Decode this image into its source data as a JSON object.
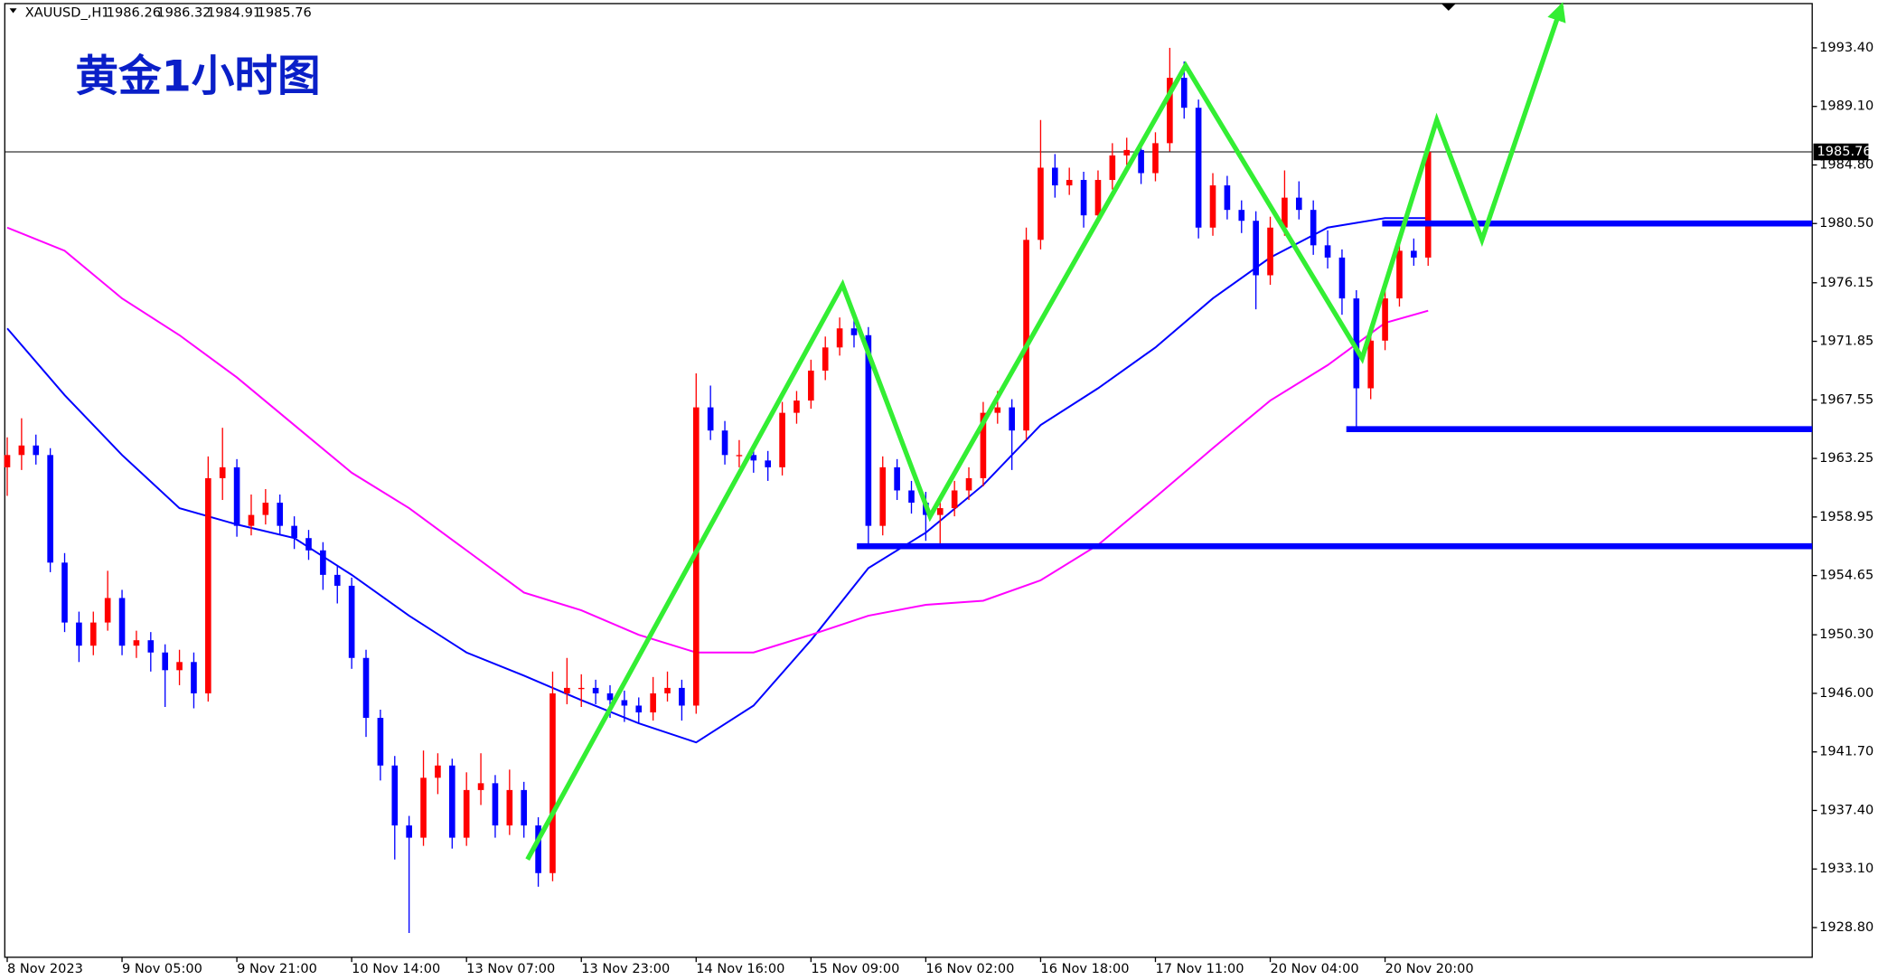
{
  "chart_data": {
    "type": "candlestick",
    "title": "黄金1小时图",
    "header": {
      "symbol": "XAUUSD_,H1",
      "values": [
        1986.26,
        1986.32,
        1984.91,
        1985.76
      ]
    },
    "current_price": 1985.76,
    "up_color": "#ff0000",
    "down_color": "#0000ff",
    "xlim": [
      -0.17,
      125.76
    ],
    "ylim": [
      1926.62,
      1996.65
    ],
    "yticks": [
      {
        "value": 1993.4,
        "label": "1993.40"
      },
      {
        "value": 1989.1,
        "label": "1989.10"
      },
      {
        "value": 1984.8,
        "label": "1984.80"
      },
      {
        "value": 1980.5,
        "label": "1980.50"
      },
      1976.15,
      1971.85,
      1967.55,
      1963.25,
      1958.95,
      1954.65,
      {
        "value": 1950.3,
        "label": "1950.30"
      },
      {
        "value": 1946.0,
        "label": "1946.00"
      },
      {
        "value": 1941.7,
        "label": "1941.70"
      },
      {
        "value": 1937.4,
        "label": "1937.40"
      },
      {
        "value": 1933.1,
        "label": "1933.10"
      },
      {
        "value": 1928.8,
        "label": "1928.80"
      }
    ],
    "categories": [
      "8 Nov 2023",
      null,
      null,
      null,
      null,
      null,
      null,
      null,
      "9 Nov 05:00",
      null,
      null,
      null,
      null,
      null,
      null,
      null,
      "9 Nov 21:00",
      null,
      null,
      null,
      null,
      null,
      null,
      null,
      "10 Nov 14:00",
      null,
      null,
      null,
      null,
      null,
      null,
      null,
      "13 Nov 07:00",
      null,
      null,
      null,
      null,
      null,
      null,
      null,
      "13 Nov 23:00",
      null,
      null,
      null,
      null,
      null,
      null,
      null,
      "14 Nov 16:00",
      null,
      null,
      null,
      null,
      null,
      null,
      null,
      "15 Nov 09:00",
      null,
      null,
      null,
      null,
      null,
      null,
      null,
      "16 Nov 02:00",
      null,
      null,
      null,
      null,
      null,
      null,
      null,
      "16 Nov 18:00",
      null,
      null,
      null,
      null,
      null,
      null,
      null,
      "17 Nov 11:00",
      null,
      null,
      null,
      null,
      null,
      null,
      null,
      "20 Nov 04:00",
      null,
      null,
      null,
      null,
      null,
      null,
      null,
      "20 Nov 20:00",
      null,
      null,
      null
    ],
    "candles": [
      [
        1962.6,
        1964.8,
        1960.5,
        1963.5
      ],
      [
        1963.5,
        1966.2,
        1962.4,
        1964.2
      ],
      [
        1964.2,
        1965.0,
        1962.8,
        1963.5
      ],
      [
        1963.5,
        1964.0,
        1954.9,
        1955.6
      ],
      [
        1955.6,
        1956.3,
        1950.5,
        1951.2
      ],
      [
        1951.2,
        1952.0,
        1948.3,
        1949.5
      ],
      [
        1949.5,
        1952.0,
        1948.8,
        1951.2
      ],
      [
        1951.2,
        1955.0,
        1950.6,
        1953.0
      ],
      [
        1953.0,
        1953.6,
        1948.8,
        1949.5
      ],
      [
        1949.5,
        1950.6,
        1948.6,
        1949.9
      ],
      [
        1949.9,
        1950.5,
        1947.6,
        1949.0
      ],
      [
        1949.0,
        1949.6,
        1945.0,
        1947.7
      ],
      [
        1947.7,
        1949.2,
        1946.6,
        1948.3
      ],
      [
        1948.3,
        1949.0,
        1944.9,
        1946.0
      ],
      [
        1946.0,
        1963.4,
        1945.4,
        1961.8
      ],
      [
        1961.8,
        1965.5,
        1960.2,
        1962.6
      ],
      [
        1962.6,
        1963.2,
        1957.5,
        1958.3
      ],
      [
        1958.3,
        1960.6,
        1957.6,
        1959.1
      ],
      [
        1959.1,
        1961.0,
        1958.4,
        1960.0
      ],
      [
        1960.0,
        1960.6,
        1957.7,
        1958.3
      ],
      [
        1958.3,
        1959.0,
        1956.6,
        1957.4
      ],
      [
        1957.4,
        1958.0,
        1955.8,
        1956.5
      ],
      [
        1956.5,
        1957.1,
        1953.6,
        1954.7
      ],
      [
        1954.7,
        1955.4,
        1952.6,
        1953.9
      ],
      [
        1953.9,
        1954.5,
        1947.8,
        1948.6
      ],
      [
        1948.6,
        1949.2,
        1942.8,
        1944.2
      ],
      [
        1944.2,
        1944.8,
        1939.6,
        1940.7
      ],
      [
        1940.7,
        1941.4,
        1933.8,
        1936.3
      ],
      [
        1936.3,
        1937.0,
        1928.4,
        1935.4
      ],
      [
        1935.4,
        1941.8,
        1934.8,
        1939.8
      ],
      [
        1939.8,
        1941.6,
        1938.6,
        1940.7
      ],
      [
        1940.7,
        1941.2,
        1934.6,
        1935.4
      ],
      [
        1935.4,
        1940.2,
        1934.8,
        1938.9
      ],
      [
        1938.9,
        1941.6,
        1937.8,
        1939.4
      ],
      [
        1939.4,
        1940.0,
        1935.4,
        1936.3
      ],
      [
        1936.3,
        1940.4,
        1935.6,
        1938.9
      ],
      [
        1938.9,
        1939.5,
        1935.4,
        1936.3
      ],
      [
        1936.3,
        1936.9,
        1931.8,
        1932.8
      ],
      [
        1932.8,
        1947.6,
        1932.2,
        1946.0
      ],
      [
        1946.0,
        1948.6,
        1945.2,
        1946.4
      ],
      [
        1946.4,
        1947.4,
        1945.0,
        1946.4
      ],
      [
        1946.4,
        1947.0,
        1945.2,
        1946.0
      ],
      [
        1946.0,
        1946.6,
        1944.2,
        1945.5
      ],
      [
        1945.5,
        1946.2,
        1943.9,
        1945.1
      ],
      [
        1945.1,
        1945.7,
        1943.8,
        1944.6
      ],
      [
        1944.6,
        1947.2,
        1944.0,
        1946.0
      ],
      [
        1946.0,
        1947.6,
        1945.4,
        1946.4
      ],
      [
        1946.4,
        1947.0,
        1944.0,
        1945.1
      ],
      [
        1945.1,
        1969.5,
        1944.5,
        1967.0
      ],
      [
        1967.0,
        1968.6,
        1964.6,
        1965.3
      ],
      [
        1965.3,
        1966.0,
        1962.8,
        1963.5
      ],
      [
        1963.5,
        1964.6,
        1962.6,
        1963.5
      ],
      [
        1963.5,
        1964.2,
        1962.2,
        1963.1
      ],
      [
        1963.1,
        1963.8,
        1961.6,
        1962.6
      ],
      [
        1962.6,
        1967.4,
        1962.0,
        1966.6
      ],
      [
        1966.6,
        1968.2,
        1965.8,
        1967.5
      ],
      [
        1967.5,
        1970.5,
        1966.9,
        1969.7
      ],
      [
        1969.7,
        1972.2,
        1969.0,
        1971.4
      ],
      [
        1971.4,
        1973.6,
        1970.8,
        1972.8
      ],
      [
        1972.8,
        1973.5,
        1971.4,
        1972.3
      ],
      [
        1972.3,
        1972.9,
        1956.6,
        1958.3
      ],
      [
        1958.3,
        1963.4,
        1957.6,
        1962.6
      ],
      [
        1962.6,
        1963.2,
        1960.2,
        1960.9
      ],
      [
        1960.9,
        1961.6,
        1959.2,
        1960.0
      ],
      [
        1960.0,
        1960.8,
        1957.2,
        1959.1
      ],
      [
        1959.1,
        1960.4,
        1956.8,
        1959.6
      ],
      [
        1959.6,
        1961.6,
        1959.0,
        1960.9
      ],
      [
        1960.9,
        1962.6,
        1960.2,
        1961.8
      ],
      [
        1961.8,
        1967.4,
        1961.2,
        1966.6
      ],
      [
        1966.6,
        1968.2,
        1965.8,
        1967.0
      ],
      [
        1967.0,
        1967.6,
        1962.4,
        1965.3
      ],
      [
        1965.3,
        1980.2,
        1964.6,
        1979.3
      ],
      [
        1979.3,
        1988.1,
        1978.6,
        1984.6
      ],
      [
        1984.6,
        1985.6,
        1982.4,
        1983.3
      ],
      [
        1983.3,
        1984.6,
        1982.6,
        1983.7
      ],
      [
        1983.7,
        1984.3,
        1980.2,
        1981.1
      ],
      [
        1981.1,
        1984.4,
        1980.6,
        1983.7
      ],
      [
        1983.7,
        1986.4,
        1983.0,
        1985.5
      ],
      [
        1985.5,
        1986.8,
        1984.8,
        1985.9
      ],
      [
        1985.9,
        1986.5,
        1983.4,
        1984.2
      ],
      [
        1984.2,
        1987.2,
        1983.6,
        1986.4
      ],
      [
        1986.4,
        1993.4,
        1985.8,
        1991.2
      ],
      [
        1991.2,
        1992.4,
        1988.2,
        1989.0
      ],
      [
        1989.0,
        1989.6,
        1979.4,
        1980.2
      ],
      [
        1980.2,
        1984.2,
        1979.6,
        1983.3
      ],
      [
        1983.3,
        1984.0,
        1980.8,
        1981.5
      ],
      [
        1981.5,
        1982.2,
        1979.8,
        1980.7
      ],
      [
        1980.7,
        1981.4,
        1974.2,
        1976.7
      ],
      [
        1976.7,
        1981.0,
        1976.0,
        1980.2
      ],
      [
        1980.2,
        1984.4,
        1979.6,
        1982.4
      ],
      [
        1982.4,
        1983.6,
        1980.8,
        1981.5
      ],
      [
        1981.5,
        1982.2,
        1978.2,
        1978.9
      ],
      [
        1978.9,
        1980.0,
        1977.2,
        1978.0
      ],
      [
        1978.0,
        1978.6,
        1973.8,
        1975.0
      ],
      [
        1975.0,
        1975.6,
        1965.4,
        1968.4
      ],
      [
        1968.4,
        1972.6,
        1967.6,
        1971.9
      ],
      [
        1971.9,
        1975.8,
        1971.2,
        1975.0
      ],
      [
        1975.0,
        1979.2,
        1974.4,
        1978.5
      ],
      [
        1978.5,
        1979.4,
        1977.4,
        1978.0
      ],
      [
        1978.0,
        1986.32,
        1977.4,
        1985.76
      ]
    ],
    "ma_x": [
      0,
      4,
      8,
      12,
      16,
      20,
      24,
      28,
      32,
      36,
      40,
      44,
      48,
      52,
      56,
      60,
      64,
      68,
      72,
      76,
      80,
      84,
      88,
      92,
      96,
      99
    ],
    "moving_averages": [
      {
        "color": "#0000ff",
        "values": [
          1972.8,
          1967.9,
          1963.5,
          1959.6,
          1958.4,
          1957.4,
          1954.7,
          1951.7,
          1949.0,
          1947.3,
          1945.5,
          1943.8,
          1942.4,
          1945.1,
          1949.9,
          1955.2,
          1957.8,
          1961.3,
          1965.7,
          1968.4,
          1971.4,
          1975.0,
          1978.0,
          1980.2,
          1980.9,
          1980.9
        ]
      },
      {
        "color": "#ff00ff",
        "values": [
          1980.2,
          1978.5,
          1975.0,
          1972.3,
          1969.2,
          1965.7,
          1962.2,
          1959.6,
          1956.5,
          1953.4,
          1952.1,
          1950.3,
          1949.0,
          1949.0,
          1950.3,
          1951.7,
          1952.5,
          1952.8,
          1954.3,
          1956.9,
          1960.4,
          1964.0,
          1967.5,
          1970.1,
          1973.2,
          1974.1
        ]
      }
    ],
    "levels": [
      {
        "value": 1980.5,
        "start": 95.8
      },
      {
        "value": 1965.4,
        "start": 93.3
      },
      {
        "value": 1956.8,
        "start": 59.2
      }
    ],
    "level_color": "#0000ff",
    "forecast": {
      "color": "#33ee33",
      "x": [
        36.25,
        58.2,
        64.3,
        82.1,
        94.4,
        99.6,
        102.75,
        108.3
      ],
      "y": [
        1933.8,
        1976.0,
        1959.0,
        1992.1,
        1970.6,
        1988.1,
        1979.3,
        1996.5
      ]
    }
  }
}
